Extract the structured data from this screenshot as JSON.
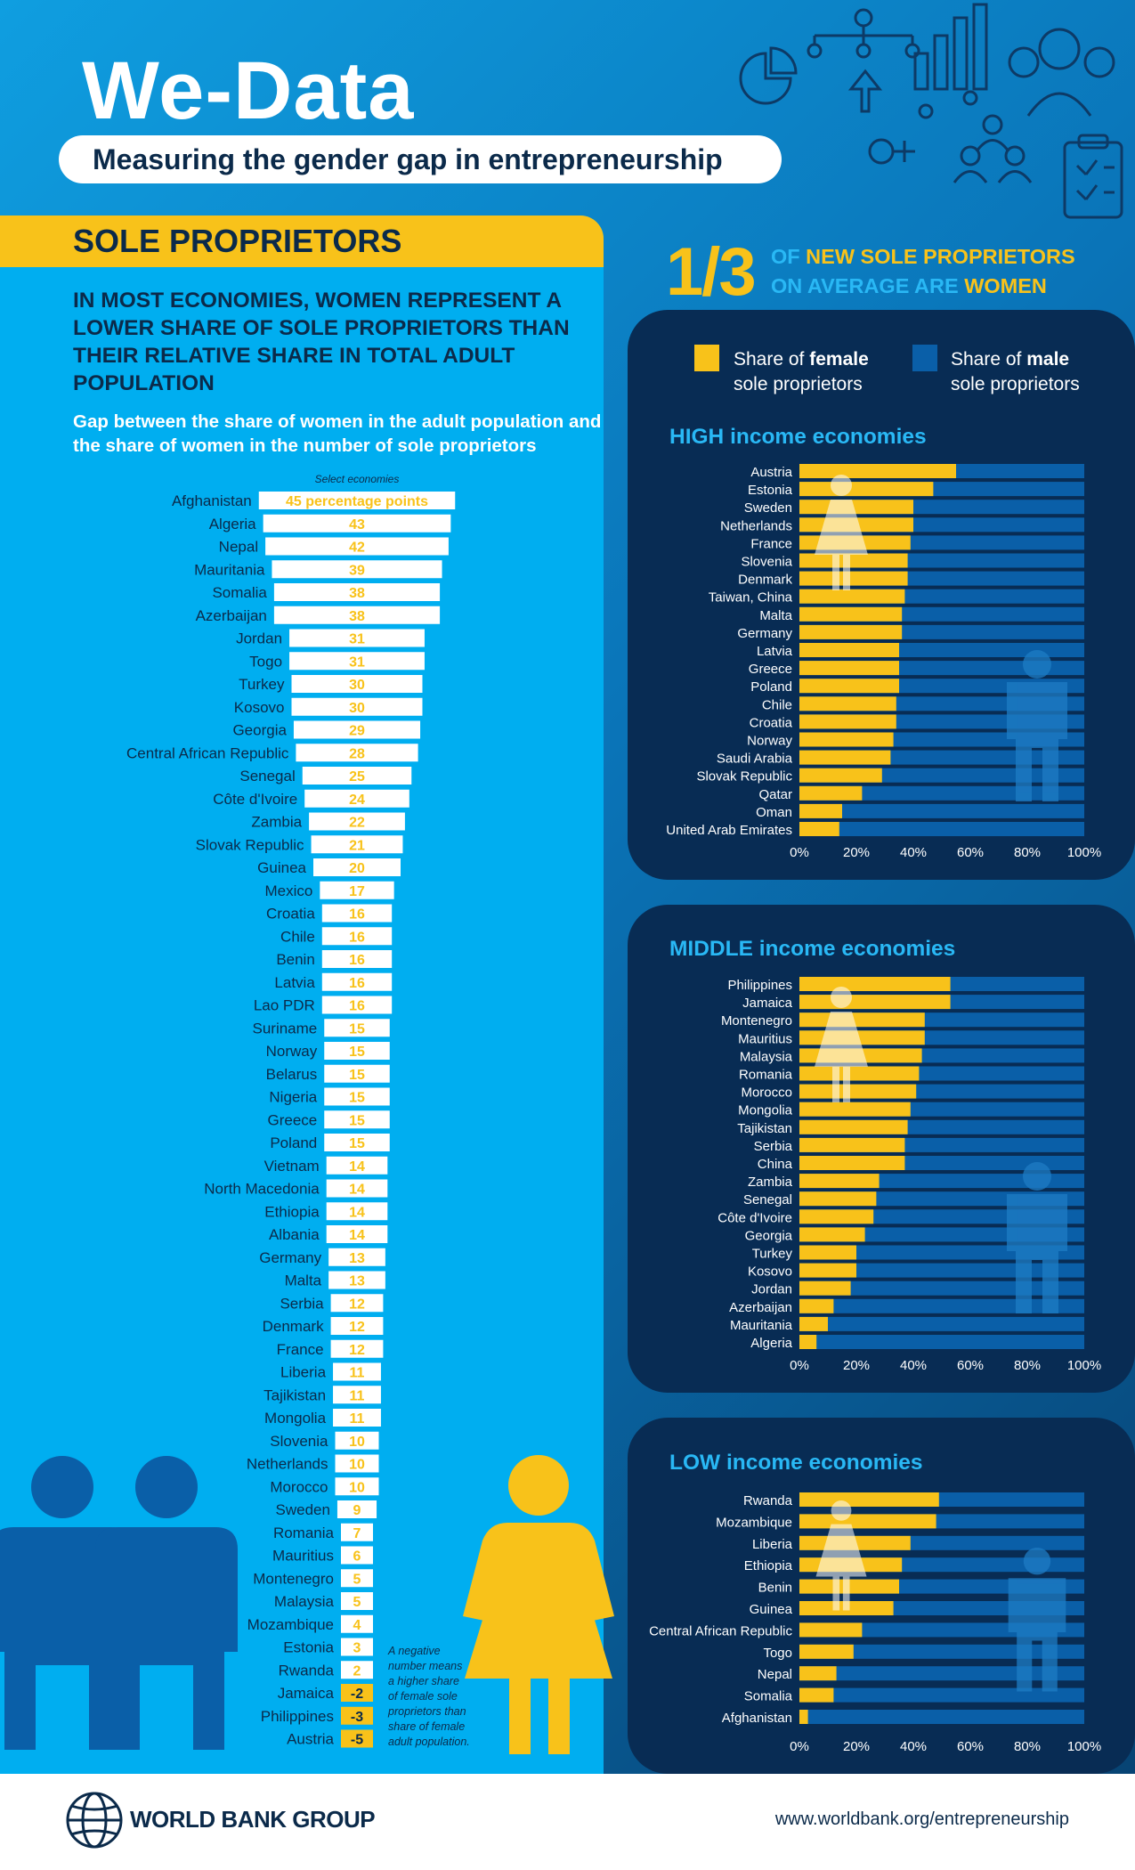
{
  "header": {
    "title": "We-Data",
    "subtitle": "Measuring the gender gap in entrepreneurship"
  },
  "left": {
    "section_title": "SOLE PROPRIETORS",
    "headline": "In most economies, women represent a lower share of sole proprietors than their relative share in total adult population",
    "subhead": "Gap between the share of women in the adult population and the share of women in the number of sole proprietors",
    "note": "A negative number means a higher share of female sole proprietors than share of female adult population."
  },
  "right": {
    "stat_value": "1/3",
    "stat_text_pre": "of",
    "stat_text_hl1": "new sole proprietors",
    "stat_text_mid": "on average are",
    "stat_text_hl2": "women",
    "legend_female": "Share of female sole proprietors",
    "legend_female_a": "Share of ",
    "legend_female_b": "female",
    "legend_female_c": "sole proprietors",
    "legend_male_a": "Share of ",
    "legend_male_b": "male",
    "legend_male_c": "sole proprietors",
    "high_title_a": "HIGH",
    "middle_title_a": "MIDDLE",
    "low_title_a": "LOW",
    "income_title_b": "income economies"
  },
  "footer": {
    "logo": "WORLD BANK GROUP",
    "url": "www.worldbank.org/entrepreneurship"
  },
  "colors": {
    "yellow": "#f8c21a",
    "male_blue": "#0a5fa8",
    "panel_dark": "#082c54",
    "light_blue": "#00aef0",
    "text_dark": "#0b2a4a"
  },
  "chart_data": [
    {
      "type": "bar",
      "title": "Gap between the share of women in the adult population and the share of women in the number of sole proprietors",
      "caption": "Select economies",
      "first_label": "45 percentage points",
      "categories": [
        "Afghanistan",
        "Algeria",
        "Nepal",
        "Mauritania",
        "Somalia",
        "Azerbaijan",
        "Jordan",
        "Togo",
        "Turkey",
        "Kosovo",
        "Georgia",
        "Central African Republic",
        "Senegal",
        "Côte d'Ivoire",
        "Zambia",
        "Slovak Republic",
        "Guinea",
        "Mexico",
        "Croatia",
        "Chile",
        "Benin",
        "Latvia",
        "Lao PDR",
        "Suriname",
        "Norway",
        "Belarus",
        "Nigeria",
        "Greece",
        "Poland",
        "Vietnam",
        "North Macedonia",
        "Ethiopia",
        "Albania",
        "Germany",
        "Malta",
        "Serbia",
        "Denmark",
        "France",
        "Liberia",
        "Tajikistan",
        "Mongolia",
        "Slovenia",
        "Netherlands",
        "Morocco",
        "Sweden",
        "Romania",
        "Mauritius",
        "Montenegro",
        "Malaysia",
        "Mozambique",
        "Estonia",
        "Rwanda",
        "Jamaica",
        "Philippines",
        "Austria"
      ],
      "values": [
        45,
        43,
        42,
        39,
        38,
        38,
        31,
        31,
        30,
        30,
        29,
        28,
        25,
        24,
        22,
        21,
        20,
        17,
        16,
        16,
        16,
        16,
        16,
        15,
        15,
        15,
        15,
        15,
        15,
        14,
        14,
        14,
        14,
        13,
        13,
        12,
        12,
        12,
        11,
        11,
        11,
        10,
        10,
        10,
        9,
        7,
        6,
        5,
        5,
        4,
        3,
        2,
        -2,
        -3,
        -5
      ],
      "value_labels": [
        "45 percentage points",
        "43",
        "42",
        "39",
        "38",
        "38",
        "31",
        "31",
        "30",
        "30",
        "29",
        "28",
        "25",
        "24",
        "22",
        "21",
        "20",
        "17",
        "16",
        "16",
        "16",
        "16",
        "16",
        "15",
        "15",
        "15",
        "15",
        "15",
        "15",
        "14",
        "14",
        "14",
        "14",
        "13",
        "13",
        "12",
        "12",
        "12",
        "11",
        "11",
        "11",
        "10",
        "10",
        "10",
        "9",
        "7",
        "6",
        "5",
        "5",
        "4",
        "3",
        "2",
        "-2",
        "-3",
        "-5"
      ],
      "unit": "percentage points"
    },
    {
      "type": "bar",
      "title": "HIGH income economies",
      "stacked": true,
      "series": [
        {
          "name": "Share of female sole proprietors"
        },
        {
          "name": "Share of male sole proprietors"
        }
      ],
      "categories": [
        "Austria",
        "Estonia",
        "Sweden",
        "Netherlands",
        "France",
        "Slovenia",
        "Denmark",
        "Taiwan, China",
        "Malta",
        "Germany",
        "Latvia",
        "Greece",
        "Poland",
        "Chile",
        "Croatia",
        "Norway",
        "Saudi Arabia",
        "Slovak Republic",
        "Qatar",
        "Oman",
        "United Arab Emirates"
      ],
      "female_pct": [
        55,
        47,
        40,
        40,
        39,
        38,
        38,
        37,
        36,
        36,
        35,
        35,
        35,
        34,
        34,
        33,
        32,
        29,
        22,
        15,
        14
      ],
      "xlim": [
        0,
        100
      ],
      "xticks": [
        "0%",
        "20%",
        "40%",
        "60%",
        "80%",
        "100%"
      ]
    },
    {
      "type": "bar",
      "title": "MIDDLE income economies",
      "stacked": true,
      "series": [
        {
          "name": "Share of female sole proprietors"
        },
        {
          "name": "Share of male sole proprietors"
        }
      ],
      "categories": [
        "Philippines",
        "Jamaica",
        "Montenegro",
        "Mauritius",
        "Malaysia",
        "Romania",
        "Morocco",
        "Mongolia",
        "Tajikistan",
        "Serbia",
        "China",
        "Zambia",
        "Senegal",
        "Côte d'Ivoire",
        "Georgia",
        "Turkey",
        "Kosovo",
        "Jordan",
        "Azerbaijan",
        "Mauritania",
        "Algeria"
      ],
      "female_pct": [
        53,
        53,
        44,
        44,
        43,
        42,
        41,
        39,
        38,
        37,
        37,
        28,
        27,
        26,
        23,
        20,
        20,
        18,
        12,
        10,
        6
      ],
      "xlim": [
        0,
        100
      ],
      "xticks": [
        "0%",
        "20%",
        "40%",
        "60%",
        "80%",
        "100%"
      ]
    },
    {
      "type": "bar",
      "title": "LOW income economies",
      "stacked": true,
      "series": [
        {
          "name": "Share of female sole proprietors"
        },
        {
          "name": "Share of male sole proprietors"
        }
      ],
      "categories": [
        "Rwanda",
        "Mozambique",
        "Liberia",
        "Ethiopia",
        "Benin",
        "Guinea",
        "Central African Republic",
        "Togo",
        "Nepal",
        "Somalia",
        "Afghanistan"
      ],
      "female_pct": [
        49,
        48,
        39,
        36,
        35,
        33,
        22,
        19,
        13,
        12,
        3
      ],
      "xlim": [
        0,
        100
      ],
      "xticks": [
        "0%",
        "20%",
        "40%",
        "60%",
        "80%",
        "100%"
      ]
    }
  ]
}
